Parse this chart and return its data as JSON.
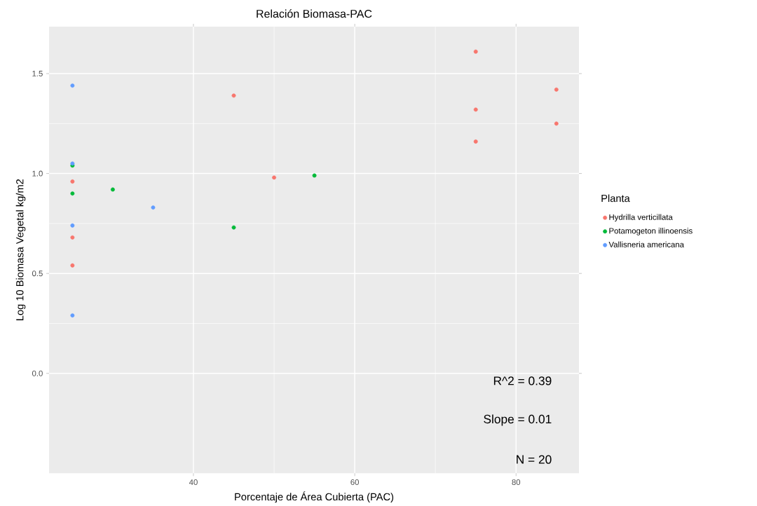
{
  "chart_data": {
    "type": "scatter",
    "title": "Relación Biomasa-PAC",
    "xlabel": "Porcentaje de Área Cubierta (PAC)",
    "ylabel": "Log 10 Biomasa Vegetal kg/m2",
    "legend_title": "Planta",
    "xlim": [
      22.1,
      87.8
    ],
    "ylim": [
      -0.5,
      1.735
    ],
    "xticks": [
      40,
      60,
      80
    ],
    "yticks": [
      {
        "value": 0.0,
        "label": "0.0"
      },
      {
        "value": 0.5,
        "label": "0.5"
      },
      {
        "value": 1.0,
        "label": "1.0"
      },
      {
        "value": 1.5,
        "label": "1.5"
      }
    ],
    "grid": true,
    "legend": "right",
    "marker": "circle",
    "annotations": [
      "R^2 = 0.39",
      "Slope = 0.01",
      "N = 20"
    ],
    "series": [
      {
        "name": "Hydrilla verticillata",
        "color": "#f8766d",
        "x": [
          75,
          85,
          75,
          85,
          75,
          45,
          50,
          25,
          25,
          25
        ],
        "values": [
          1.61,
          1.42,
          1.32,
          1.25,
          1.16,
          1.39,
          0.98,
          0.96,
          0.68,
          0.54
        ]
      },
      {
        "name": "Potamogeton illinoensis",
        "color": "#00ba38",
        "x": [
          25,
          25,
          30,
          55,
          45
        ],
        "values": [
          1.04,
          0.9,
          0.92,
          0.99,
          0.73
        ]
      },
      {
        "name": "Vallisneria americana",
        "color": "#619cff",
        "x": [
          25,
          25,
          35,
          25,
          25
        ],
        "values": [
          1.44,
          1.05,
          0.83,
          0.74,
          0.29
        ]
      }
    ]
  }
}
